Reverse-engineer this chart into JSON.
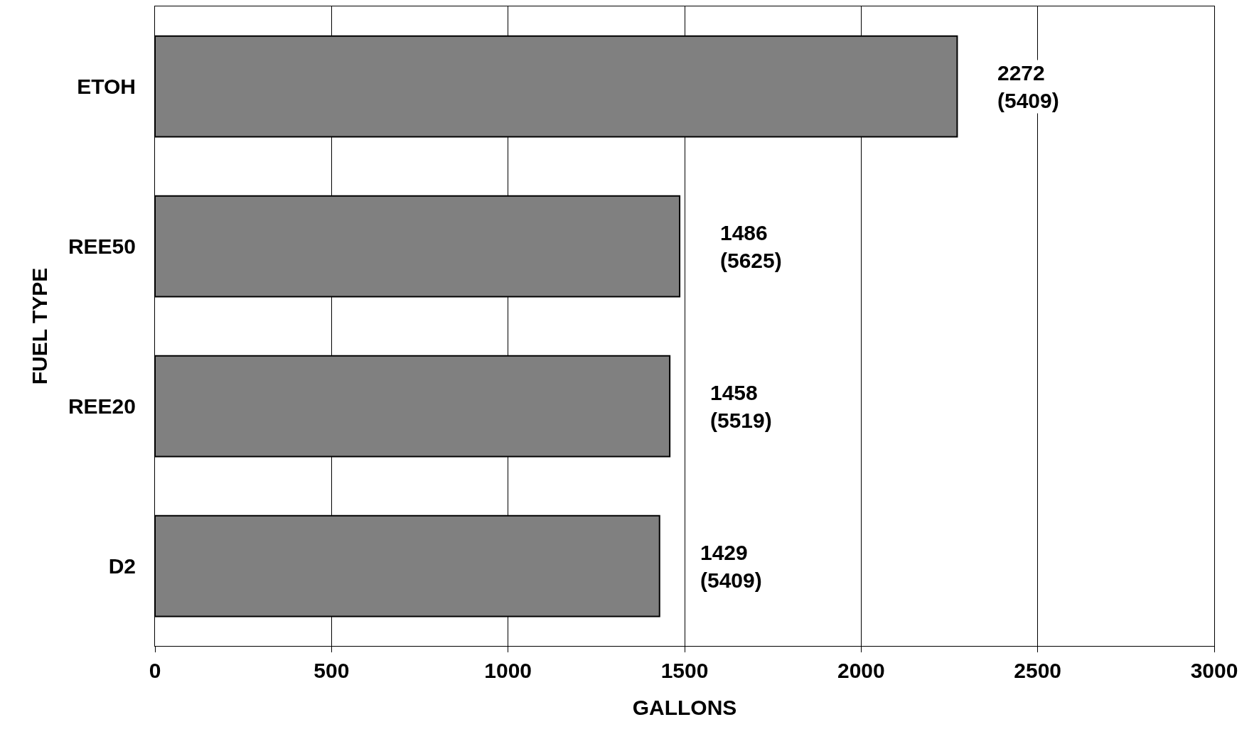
{
  "chart_data": {
    "type": "bar",
    "orientation": "horizontal",
    "xlabel": "GALLONS",
    "ylabel": "FUEL TYPE",
    "categories": [
      "ETOH",
      "REE50",
      "REE20",
      "D2"
    ],
    "values": [
      2272,
      1486,
      1458,
      1429
    ],
    "value_labels": [
      "2272\n(5409)",
      "1486\n(5625)",
      "1458\n(5519)",
      "1429\n(5409)"
    ],
    "color": "#808080",
    "xlim": [
      0,
      3000
    ],
    "xticks": [
      0,
      500,
      1000,
      1500,
      2000,
      2500,
      3000
    ],
    "grid": "x",
    "legend": false
  }
}
